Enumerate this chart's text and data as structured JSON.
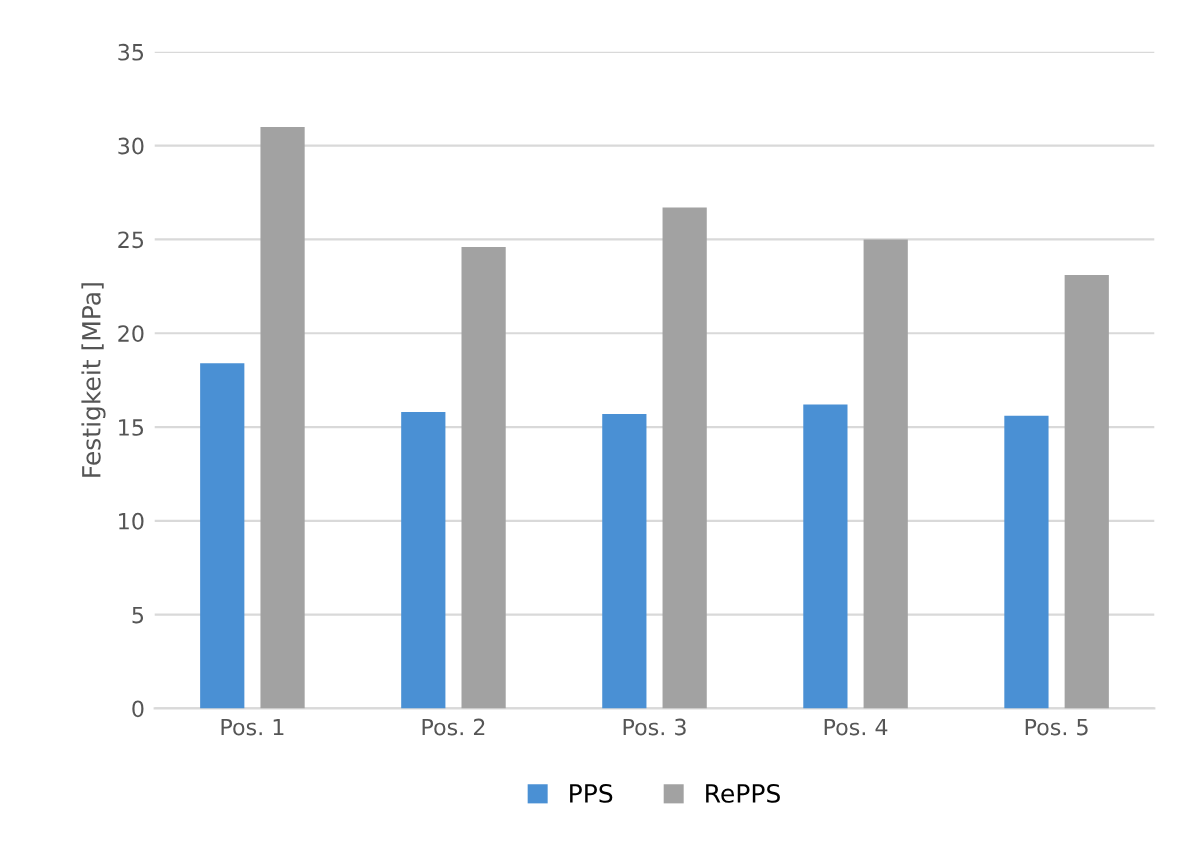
{
  "chart_data": {
    "type": "bar",
    "ylabel": "Festigkeit [MPa]",
    "categories": [
      "Pos. 1",
      "Pos. 2",
      "Pos. 3",
      "Pos. 4",
      "Pos. 5"
    ],
    "series": [
      {
        "name": "PPS",
        "color": "#4a90d4",
        "values": [
          18.4,
          15.8,
          15.7,
          16.2,
          15.6
        ]
      },
      {
        "name": "RePPS",
        "color": "#a2a2a2",
        "values": [
          31.0,
          24.6,
          26.7,
          25.0,
          23.1
        ]
      }
    ],
    "ylim": [
      0,
      35
    ],
    "yticks": [
      0,
      5,
      10,
      15,
      20,
      25,
      30,
      35
    ],
    "grid": "y",
    "legend": "bottom"
  }
}
